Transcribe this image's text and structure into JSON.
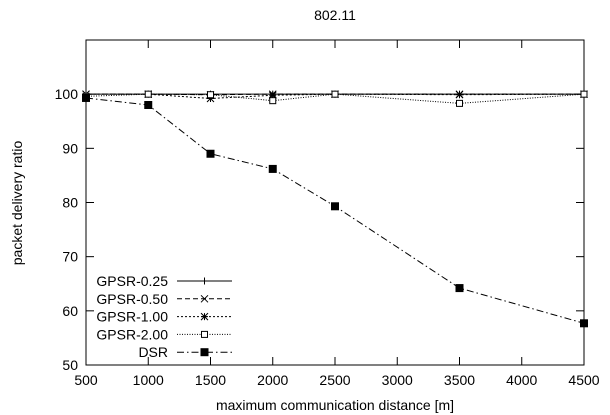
{
  "chart_data": {
    "type": "line",
    "title": "802.11",
    "xlabel": "maximum communication distance [m]",
    "ylabel": "packet delivery ratio",
    "xlim": [
      500,
      4500
    ],
    "ylim": [
      50,
      110
    ],
    "xticks": [
      500,
      1000,
      1500,
      2000,
      2500,
      3000,
      3500,
      4000,
      4500
    ],
    "yticks": [
      50,
      60,
      70,
      80,
      90,
      100
    ],
    "grid": false,
    "legend_position": "bottom-left",
    "series": [
      {
        "name": "GPSR-0.25",
        "marker": "plus",
        "dash": "",
        "x": [
          500,
          1000,
          1500,
          2000,
          2500,
          3500,
          4500
        ],
        "y": [
          100,
          100,
          100,
          100,
          100,
          100,
          100
        ]
      },
      {
        "name": "GPSR-0.50",
        "marker": "x",
        "dash": "5,3",
        "x": [
          500,
          1000,
          1500,
          2000,
          2500,
          3500,
          4500
        ],
        "y": [
          100,
          100,
          99.9,
          100,
          100,
          100,
          100
        ]
      },
      {
        "name": "GPSR-1.00",
        "marker": "star",
        "dash": "2,2",
        "x": [
          500,
          1000,
          1500,
          2000,
          2500,
          3500,
          4500
        ],
        "y": [
          100,
          100,
          99.2,
          99.8,
          100,
          99.9,
          100
        ]
      },
      {
        "name": "GPSR-2.00",
        "marker": "square-open",
        "dash": "1,1.5",
        "x": [
          500,
          1000,
          1500,
          2000,
          2500,
          3500,
          4500
        ],
        "y": [
          99.6,
          100,
          99.9,
          98.8,
          100,
          98.3,
          100
        ]
      },
      {
        "name": "DSR",
        "marker": "square-filled",
        "dash": "7,3,1.5,3",
        "x": [
          500,
          1000,
          1500,
          2000,
          2500,
          3500,
          4500
        ],
        "y": [
          99.3,
          98,
          89,
          86.2,
          79.3,
          64.2,
          57.7
        ]
      }
    ]
  }
}
